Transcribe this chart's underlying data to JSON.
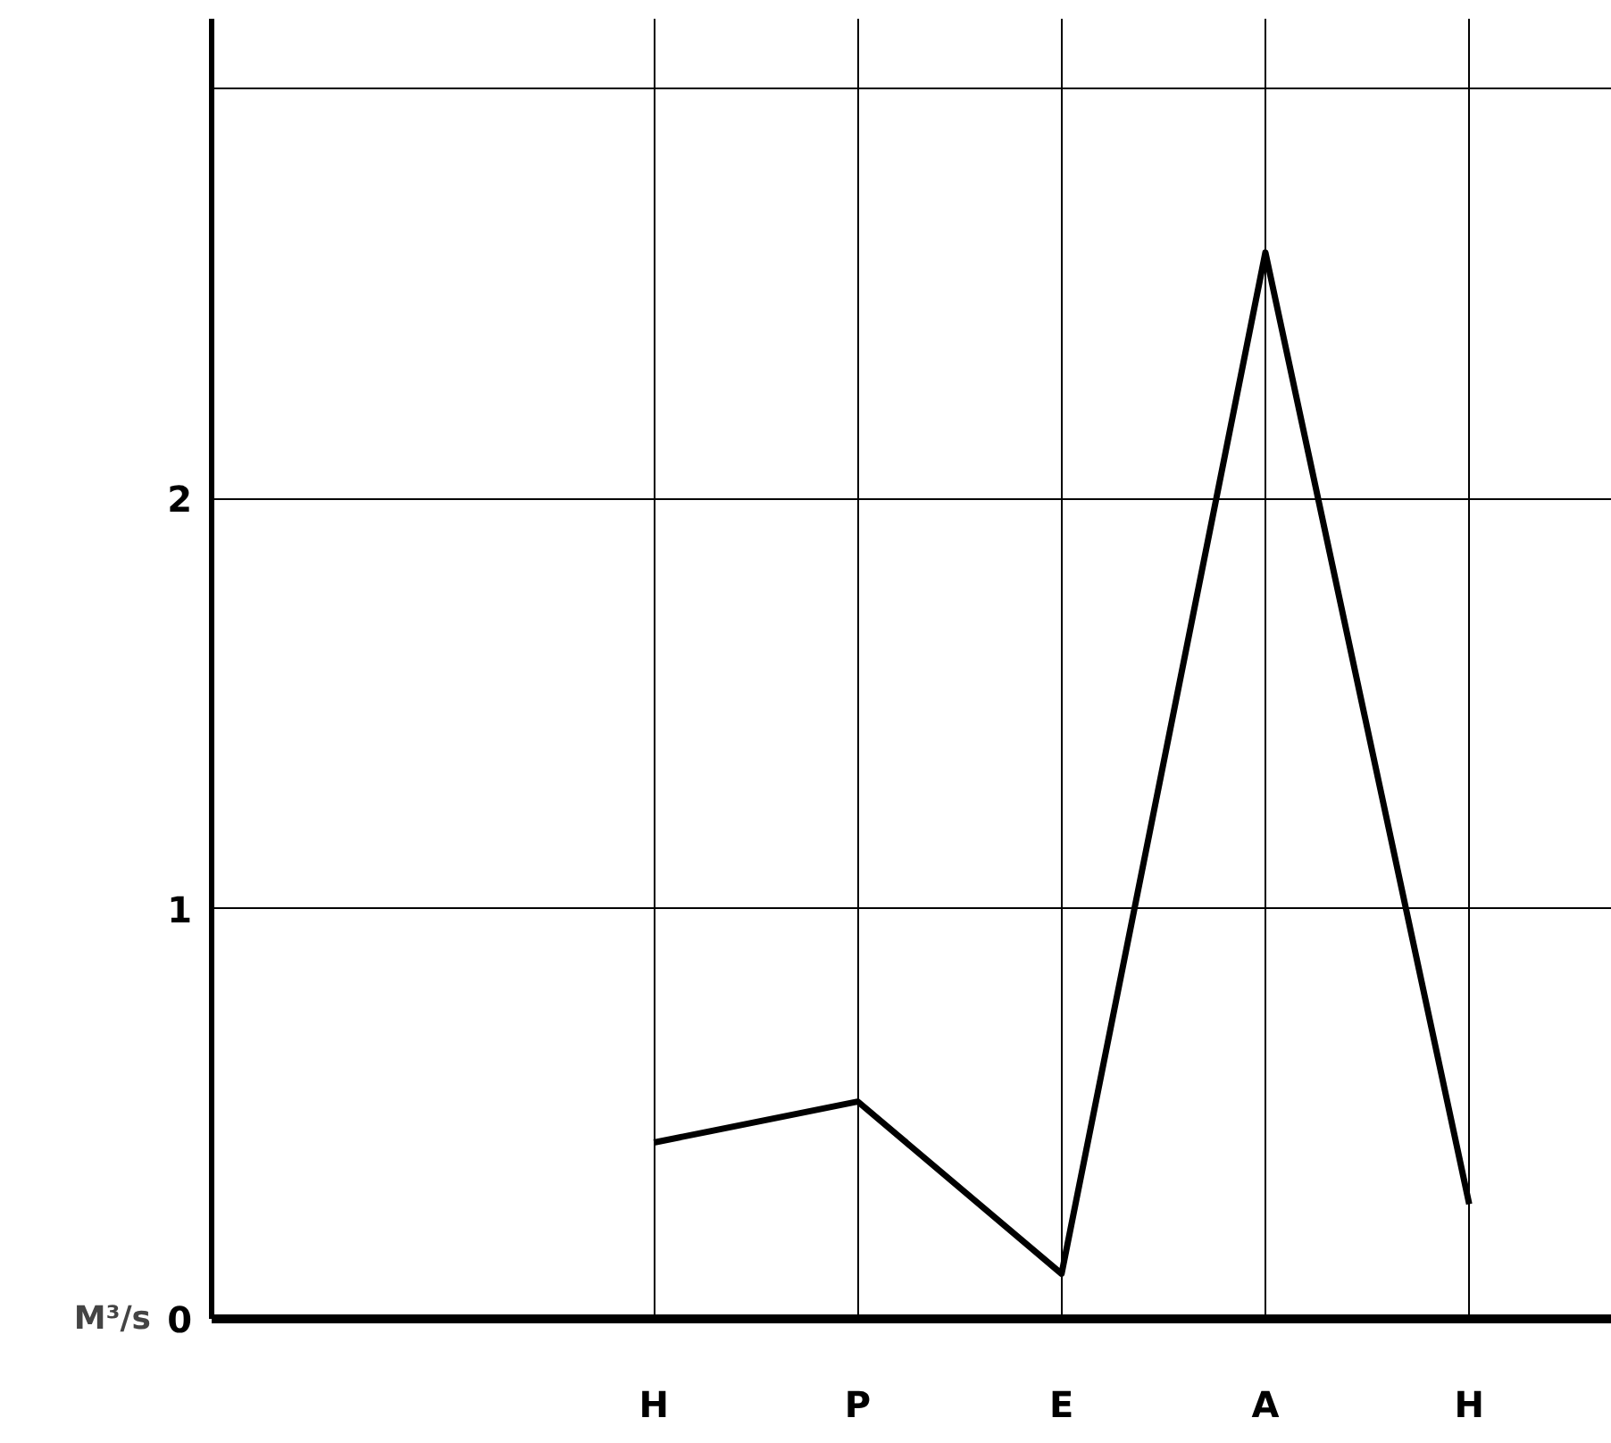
{
  "chart_data": {
    "type": "line",
    "categories": [
      "H",
      "P",
      "E",
      "A",
      "H"
    ],
    "series": [
      {
        "color": "#000000",
        "values": [
          0.43,
          0.53,
          0.11,
          2.6,
          0.28
        ]
      }
    ],
    "ylabel": "M³/s",
    "ylim": [
      0,
      3.17
    ],
    "yticks": [
      0,
      1,
      2,
      {
        "value": 3,
        "label": null
      }
    ],
    "grid": true,
    "marker": "none",
    "line_style": "solid"
  }
}
